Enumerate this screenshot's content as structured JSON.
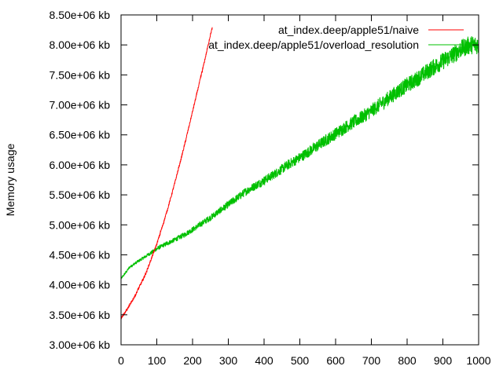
{
  "chart_data": {
    "type": "line",
    "title": "",
    "xlabel": "",
    "ylabel": "Memory usage",
    "xlim": [
      0,
      1000
    ],
    "ylim": [
      3000000,
      8500000
    ],
    "grid": false,
    "legend_position": "top-right",
    "x_ticks": [
      0,
      100,
      200,
      300,
      400,
      500,
      600,
      700,
      800,
      900,
      1000
    ],
    "x_tick_labels": [
      "0",
      "100",
      "200",
      "300",
      "400",
      "500",
      "600",
      "700",
      "800",
      "900",
      "1000"
    ],
    "y_ticks": [
      3000000,
      3500000,
      4000000,
      4500000,
      5000000,
      5500000,
      6000000,
      6500000,
      7000000,
      7500000,
      8000000,
      8500000
    ],
    "y_tick_labels": [
      "3.00e+06 kb",
      "3.50e+06 kb",
      "4.00e+06 kb",
      "4.50e+06 kb",
      "5.00e+06 kb",
      "5.50e+06 kb",
      "6.00e+06 kb",
      "6.50e+06 kb",
      "7.00e+06 kb",
      "7.50e+06 kb",
      "8.00e+06 kb",
      "8.50e+06 kb"
    ],
    "series": [
      {
        "name": "at_index.deep/apple51/naive",
        "color": "#ff0000",
        "x": [
          0,
          10,
          20,
          30,
          40,
          50,
          60,
          70,
          80,
          90,
          100,
          110,
          120,
          130,
          140,
          150,
          160,
          170,
          180,
          190,
          200,
          210,
          220,
          230,
          240,
          250,
          255
        ],
        "y": [
          3450000,
          3530000,
          3620000,
          3720000,
          3830000,
          3950000,
          4070000,
          4200000,
          4360000,
          4520000,
          4680000,
          4870000,
          5060000,
          5260000,
          5470000,
          5690000,
          5920000,
          6150000,
          6390000,
          6640000,
          6890000,
          7140000,
          7390000,
          7640000,
          7900000,
          8170000,
          8280000
        ]
      },
      {
        "name": "at_index.deep/apple51/overload_resolution",
        "color": "#00c000",
        "x": [
          0,
          25,
          50,
          75,
          100,
          125,
          150,
          175,
          200,
          225,
          250,
          275,
          300,
          325,
          350,
          375,
          400,
          425,
          450,
          475,
          500,
          525,
          550,
          575,
          600,
          625,
          650,
          675,
          700,
          725,
          750,
          775,
          800,
          825,
          850,
          875,
          900,
          925,
          950,
          975,
          1000
        ],
        "y": [
          4100000,
          4300000,
          4400000,
          4500000,
          4600000,
          4680000,
          4750000,
          4830000,
          4920000,
          5020000,
          5120000,
          5230000,
          5340000,
          5450000,
          5560000,
          5650000,
          5740000,
          5830000,
          5930000,
          6030000,
          6120000,
          6220000,
          6320000,
          6420000,
          6520000,
          6620000,
          6710000,
          6800000,
          6900000,
          7010000,
          7120000,
          7230000,
          7330000,
          7420000,
          7530000,
          7630000,
          7730000,
          7820000,
          7930000,
          8000000,
          8000000
        ]
      }
    ]
  }
}
